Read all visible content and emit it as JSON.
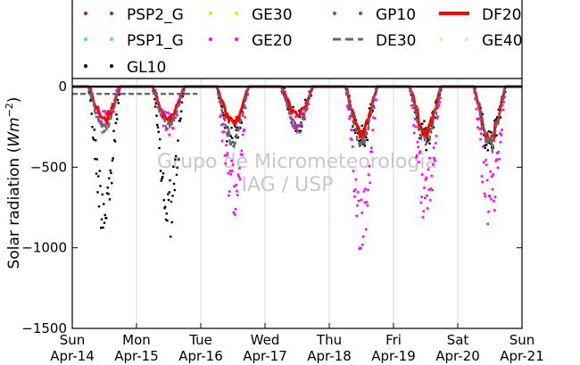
{
  "chart_data": {
    "type": "line",
    "ylabel_prefix": "Solar radiation (",
    "ylabel_unit": "Wm",
    "ylabel_exp": "−2",
    "ylabel_suffix": ")",
    "ylim": [
      -1500,
      50
    ],
    "yticks": [
      0,
      -500,
      -1000,
      -1500
    ],
    "ytick_labels": [
      "0",
      "−500",
      "−1000",
      "−1500"
    ],
    "xlim": [
      "2024-04-14",
      "2024-04-21"
    ],
    "xticks": [
      {
        "day": "Sun",
        "date": "Apr-14"
      },
      {
        "day": "Mon",
        "date": "Apr-15"
      },
      {
        "day": "Tue",
        "date": "Apr-16"
      },
      {
        "day": "Wed",
        "date": "Apr-17"
      },
      {
        "day": "Thu",
        "date": "Apr-18"
      },
      {
        "day": "Fri",
        "date": "Apr-19"
      },
      {
        "day": "Sat",
        "date": "Apr-20"
      },
      {
        "day": "Sun",
        "date": "Apr-21"
      }
    ],
    "grid": "vertical",
    "legend_position": "top",
    "watermark": [
      "Grupo de Micrometeorologia",
      "IAG / USP"
    ],
    "series": [
      {
        "name": "PSP2_G",
        "color": "#b22222",
        "style": "dotted"
      },
      {
        "name": "GE30",
        "color": "#ffd700",
        "style": "dotted"
      },
      {
        "name": "GP10",
        "color": "#228b22",
        "style": "dotted"
      },
      {
        "name": "DF20",
        "color": "#ff0000",
        "style": "solid"
      },
      {
        "name": "PSP1_G",
        "color": "#40e0d0",
        "style": "dotted"
      },
      {
        "name": "GE20",
        "color": "#ff00ff",
        "style": "dotted"
      },
      {
        "name": "DE30",
        "color": "#696969",
        "style": "dashed"
      },
      {
        "name": "GE40",
        "color": "#f5deb3",
        "style": "dotted"
      },
      {
        "name": "GL10",
        "color": "#000000",
        "style": "dotted"
      }
    ],
    "daily_peaks": [
      {
        "day": "Apr-14",
        "DF20": -230,
        "DE30": -300,
        "GE20": -280,
        "GL10": -950
      },
      {
        "day": "Apr-15",
        "DF20": -230,
        "DE30": -270,
        "GE20": -300,
        "GL10": -980
      },
      {
        "day": "Apr-16",
        "DF20": -260,
        "DE30": -400,
        "GE20": -830,
        "GL10": -400
      },
      {
        "day": "Apr-17",
        "DF20": -200,
        "DE30": -290,
        "GE20": -300,
        "GL10": -290
      },
      {
        "day": "Apr-18",
        "DF20": -330,
        "DE30": -400,
        "GE20": -1050,
        "GL10": -400
      },
      {
        "day": "Apr-19",
        "DF20": -320,
        "DE30": -390,
        "GE20": -880,
        "GL10": -400
      },
      {
        "day": "Apr-20",
        "DF20": -370,
        "DE30": -420,
        "GE20": -920,
        "GL10": -420
      }
    ]
  }
}
